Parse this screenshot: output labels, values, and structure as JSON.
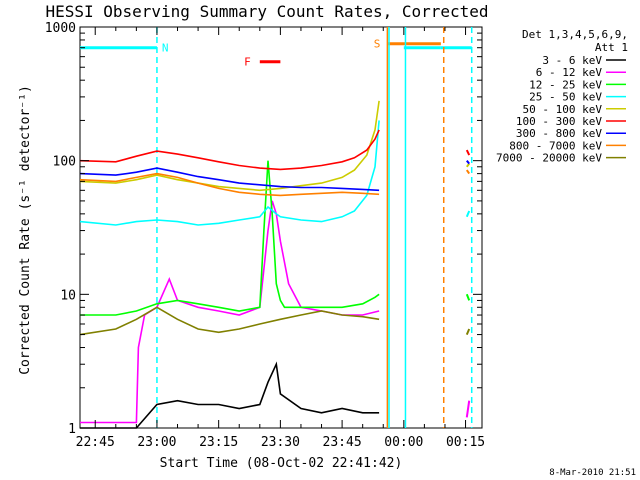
{
  "chart_data": {
    "type": "line",
    "title": "HESSI Observing Summary Count Rates, Corrected",
    "xlabel": "Start Time (08-Oct-02 22:41:42)",
    "ylabel": "Corrected Count Rate (s⁻¹ detector⁻¹)",
    "y_scale": "log",
    "ylim": [
      1,
      1000
    ],
    "xlim": [
      -3.7,
      94
    ],
    "x_unit": "minutes after 22:45 UT",
    "x_ticks": [
      {
        "value": 0,
        "label": "22:45"
      },
      {
        "value": 15,
        "label": "23:00"
      },
      {
        "value": 30,
        "label": "23:15"
      },
      {
        "value": 45,
        "label": "23:30"
      },
      {
        "value": 60,
        "label": "23:45"
      },
      {
        "value": 75,
        "label": "00:00"
      },
      {
        "value": 90,
        "label": "00:15"
      }
    ],
    "y_ticks": [
      {
        "value": 1,
        "label": "1"
      },
      {
        "value": 10,
        "label": "10"
      },
      {
        "value": 100,
        "label": "100"
      },
      {
        "value": 1000,
        "label": "1000"
      }
    ],
    "legend_title": [
      "Det 1,3,4,5,6,9,",
      "Att 1"
    ],
    "legend_position": "outside-right",
    "series": [
      {
        "name": "3 - 6 keV",
        "color": "#000000",
        "x": [
          -3.7,
          10,
          15,
          20,
          25,
          30,
          35,
          40,
          42,
          44,
          45,
          50,
          55,
          60,
          65,
          69
        ],
        "y": [
          1.0,
          1.0,
          1.5,
          1.6,
          1.5,
          1.5,
          1.4,
          1.5,
          2.2,
          3.0,
          1.8,
          1.4,
          1.3,
          1.4,
          1.3,
          1.3
        ]
      },
      {
        "name": "6 - 12 keV",
        "color": "#ff00ff",
        "x": [
          -3.7,
          10,
          10.5,
          12,
          15,
          18,
          20,
          25,
          30,
          35,
          40,
          42,
          43,
          44,
          45,
          47,
          50,
          55,
          60,
          65,
          69
        ],
        "y": [
          1.1,
          1.1,
          4.0,
          7.0,
          8.0,
          13.0,
          9.0,
          8.0,
          7.5,
          7.0,
          8.0,
          30.0,
          50.0,
          40.0,
          25.0,
          12.0,
          8.0,
          7.5,
          7.0,
          7.0,
          7.5
        ]
      },
      {
        "name": "12 - 25 keV",
        "color": "#00ff00",
        "x": [
          -3.7,
          5,
          10,
          15,
          20,
          25,
          30,
          35,
          40,
          41,
          42,
          43,
          44,
          45,
          46,
          48,
          50,
          55,
          60,
          65,
          68,
          69
        ],
        "y": [
          7.0,
          7.0,
          7.5,
          8.5,
          9.0,
          8.5,
          8.0,
          7.5,
          8.0,
          30.0,
          100.0,
          40.0,
          12.0,
          9.0,
          8.0,
          8.0,
          8.0,
          8.0,
          8.0,
          8.5,
          9.5,
          10.0
        ]
      },
      {
        "name": "25 - 50 keV",
        "color": "#00ffff",
        "x": [
          -3.7,
          5,
          10,
          15,
          20,
          25,
          30,
          35,
          40,
          42,
          44,
          45,
          50,
          55,
          60,
          63,
          66,
          68,
          69
        ],
        "y": [
          35.0,
          33.0,
          35.0,
          36.0,
          35.0,
          33.0,
          34.0,
          36.0,
          38.0,
          45.0,
          40.0,
          38.0,
          36.0,
          35.0,
          38.0,
          42.0,
          55.0,
          90.0,
          200.0
        ]
      },
      {
        "name": "50 - 100 keV",
        "color": "#cccc00",
        "x": [
          -3.7,
          5,
          10,
          15,
          20,
          25,
          30,
          35,
          40,
          45,
          50,
          55,
          60,
          63,
          66,
          68,
          69
        ],
        "y": [
          70.0,
          68.0,
          72.0,
          78.0,
          72.0,
          68.0,
          64.0,
          62.0,
          60.0,
          62.0,
          65.0,
          68.0,
          75.0,
          85.0,
          110.0,
          170.0,
          280.0
        ]
      },
      {
        "name": "100 - 300 keV",
        "color": "#ff0000",
        "x": [
          -3.7,
          5,
          10,
          15,
          20,
          25,
          30,
          35,
          40,
          45,
          50,
          55,
          60,
          63,
          66,
          68,
          69
        ],
        "y": [
          100.0,
          98.0,
          108.0,
          118.0,
          112.0,
          105.0,
          98.0,
          92.0,
          88.0,
          86.0,
          88.0,
          92.0,
          98.0,
          105.0,
          120.0,
          145.0,
          170.0
        ]
      },
      {
        "name": "300 - 800 keV",
        "color": "#0000ff",
        "x": [
          -3.7,
          5,
          10,
          15,
          20,
          25,
          30,
          35,
          40,
          45,
          50,
          55,
          60,
          65,
          69
        ],
        "y": [
          80.0,
          78.0,
          82.0,
          88.0,
          82.0,
          76.0,
          72.0,
          68.0,
          66.0,
          64.0,
          63.0,
          63.0,
          62.0,
          61.0,
          60.0
        ]
      },
      {
        "name": "800 - 7000 keV",
        "color": "#ff8000",
        "x": [
          -3.7,
          5,
          10,
          15,
          20,
          25,
          30,
          35,
          40,
          45,
          50,
          55,
          60,
          65,
          69
        ],
        "y": [
          72.0,
          70.0,
          75.0,
          80.0,
          75.0,
          68.0,
          62.0,
          58.0,
          56.0,
          55.0,
          56.0,
          57.0,
          58.0,
          57.0,
          56.0
        ]
      },
      {
        "name": "7000 - 20000 keV",
        "color": "#808000",
        "x": [
          -3.7,
          5,
          10,
          15,
          20,
          25,
          30,
          35,
          40,
          45,
          50,
          55,
          60,
          65,
          69
        ],
        "y": [
          5.0,
          5.5,
          6.5,
          8.0,
          6.5,
          5.5,
          5.2,
          5.5,
          6.0,
          6.5,
          7.0,
          7.5,
          7.0,
          6.8,
          6.5
        ]
      }
    ],
    "after_gap_segments": [
      {
        "color": "#ff00ff",
        "x": [
          90.3,
          90.9
        ],
        "y": [
          1.2,
          1.6
        ]
      },
      {
        "color": "#00ff00",
        "x": [
          90.3,
          90.9
        ],
        "y": [
          10.0,
          9.0
        ]
      },
      {
        "color": "#00ffff",
        "x": [
          90.3,
          90.9
        ],
        "y": [
          38.0,
          42.0
        ]
      },
      {
        "color": "#cccc00",
        "x": [
          90.3,
          90.9
        ],
        "y": [
          90.0,
          95.0
        ]
      },
      {
        "color": "#ff0000",
        "x": [
          90.3,
          90.9
        ],
        "y": [
          120.0,
          110.0
        ]
      },
      {
        "color": "#0000ff",
        "x": [
          90.3,
          90.9
        ],
        "y": [
          100.0,
          95.0
        ]
      },
      {
        "color": "#ff8000",
        "x": [
          90.3,
          90.9
        ],
        "y": [
          85.0,
          80.0
        ]
      },
      {
        "color": "#808000",
        "x": [
          90.3,
          90.9
        ],
        "y": [
          5.0,
          5.5
        ]
      }
    ],
    "bars": [
      {
        "label": "N",
        "color": "#00ffff",
        "x_start": -3.7,
        "x_end": 15,
        "y": 700,
        "label_x": 17
      },
      {
        "label": "F",
        "color": "#ff0000",
        "x_start": 40,
        "x_end": 45,
        "y": 550,
        "label_x": 37
      },
      {
        "label": "S",
        "color": "#ff8000",
        "x_start": 71,
        "x_end": 84,
        "y": 750,
        "label_x": 68.5
      },
      {
        "label": "",
        "color": "#00ffff",
        "x_start": 75,
        "x_end": 84,
        "y": 700
      },
      {
        "label": "",
        "color": "#00ffff",
        "x_start": 84,
        "x_end": 91.5,
        "y": 700
      }
    ],
    "vertical_lines": [
      {
        "x": 15,
        "color": "#00ffff",
        "style": "dashed"
      },
      {
        "x": 71,
        "color": "#ff8000",
        "style": "solid"
      },
      {
        "x": 71.4,
        "color": "#00ffff",
        "style": "solid"
      },
      {
        "x": 75.4,
        "color": "#00ffff",
        "style": "solid"
      },
      {
        "x": 84.7,
        "color": "#ff8000",
        "style": "dashed"
      },
      {
        "x": 91.5,
        "color": "#00ffff",
        "style": "dashed"
      }
    ],
    "timestamp": "8-Mar-2010 21:51"
  }
}
